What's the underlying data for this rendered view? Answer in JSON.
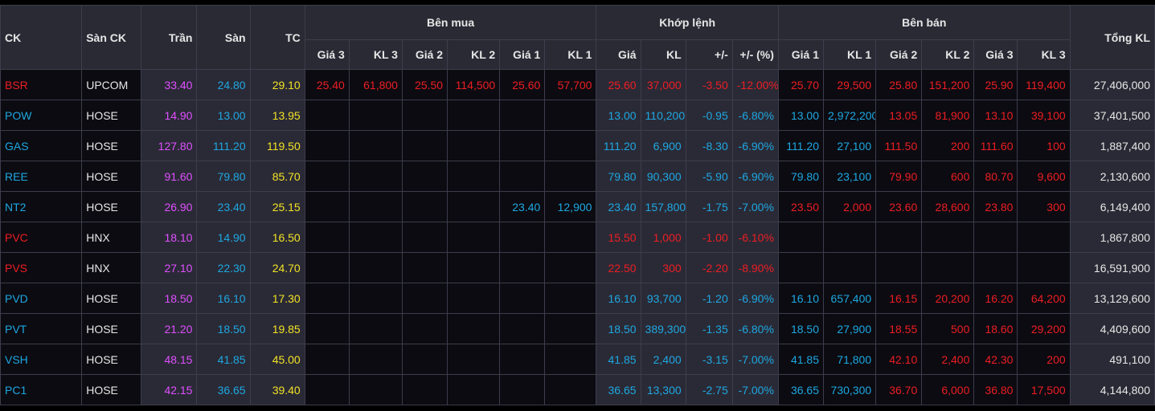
{
  "headers": {
    "ck": "CK",
    "san_ck": "Sàn CK",
    "tran": "Trần",
    "san": "Sàn",
    "tc": "TC",
    "ben_mua": "Bên mua",
    "khop_lenh": "Khớp lệnh",
    "ben_ban": "Bên bán",
    "tong_kl": "Tổng KL",
    "buy_cols": [
      "Giá 3",
      "KL 3",
      "Giá 2",
      "KL 2",
      "Giá 1",
      "KL 1"
    ],
    "match_cols": [
      "Giá",
      "KL",
      "+/-",
      "+/- (%)"
    ],
    "sell_cols": [
      "Giá 1",
      "KL 1",
      "Giá 2",
      "KL 2",
      "Giá 3",
      "KL 3"
    ]
  },
  "colors": {
    "up": "#ee1d23",
    "down": "#1ea7e1",
    "ceiling": "#e04fff",
    "reference": "#f2e224",
    "header_bg": "#2a2a35",
    "border": "#3d3d4c"
  },
  "rows": [
    {
      "ck": "BSR",
      "ck_color": "up",
      "san_ck": "UPCOM",
      "tran": "33.40",
      "san": "24.80",
      "tc": "29.10",
      "buy": [
        [
          "25.40",
          "up"
        ],
        [
          "61,800",
          "up"
        ],
        [
          "25.50",
          "up"
        ],
        [
          "114,500",
          "up"
        ],
        [
          "25.60",
          "up"
        ],
        [
          "57,700",
          "up"
        ]
      ],
      "match": [
        [
          "25.60",
          "up"
        ],
        [
          "37,000",
          "up"
        ],
        [
          "-3.50",
          "up"
        ],
        [
          "-12.00%",
          "up"
        ]
      ],
      "sell": [
        [
          "25.70",
          "up"
        ],
        [
          "29,500",
          "up"
        ],
        [
          "25.80",
          "up"
        ],
        [
          "151,200",
          "up"
        ],
        [
          "25.90",
          "up"
        ],
        [
          "119,400",
          "up"
        ]
      ],
      "tong_kl": "27,406,000"
    },
    {
      "ck": "POW",
      "ck_color": "down",
      "san_ck": "HOSE",
      "tran": "14.90",
      "san": "13.00",
      "tc": "13.95",
      "buy": [
        [
          "",
          ""
        ],
        [
          "",
          ""
        ],
        [
          "",
          ""
        ],
        [
          "",
          ""
        ],
        [
          "",
          ""
        ],
        [
          "",
          ""
        ]
      ],
      "match": [
        [
          "13.00",
          "down"
        ],
        [
          "110,200",
          "down"
        ],
        [
          "-0.95",
          "down"
        ],
        [
          "-6.80%",
          "down"
        ]
      ],
      "sell": [
        [
          "13.00",
          "down"
        ],
        [
          "2,972,200",
          "down"
        ],
        [
          "13.05",
          "up"
        ],
        [
          "81,900",
          "up"
        ],
        [
          "13.10",
          "up"
        ],
        [
          "39,100",
          "up"
        ]
      ],
      "tong_kl": "37,401,500"
    },
    {
      "ck": "GAS",
      "ck_color": "down",
      "san_ck": "HOSE",
      "tran": "127.80",
      "san": "111.20",
      "tc": "119.50",
      "buy": [
        [
          "",
          ""
        ],
        [
          "",
          ""
        ],
        [
          "",
          ""
        ],
        [
          "",
          ""
        ],
        [
          "",
          ""
        ],
        [
          "",
          ""
        ]
      ],
      "match": [
        [
          "111.20",
          "down"
        ],
        [
          "6,900",
          "down"
        ],
        [
          "-8.30",
          "down"
        ],
        [
          "-6.90%",
          "down"
        ]
      ],
      "sell": [
        [
          "111.20",
          "down"
        ],
        [
          "27,100",
          "down"
        ],
        [
          "111.50",
          "up"
        ],
        [
          "200",
          "up"
        ],
        [
          "111.60",
          "up"
        ],
        [
          "100",
          "up"
        ]
      ],
      "tong_kl": "1,887,400"
    },
    {
      "ck": "REE",
      "ck_color": "down",
      "san_ck": "HOSE",
      "tran": "91.60",
      "san": "79.80",
      "tc": "85.70",
      "buy": [
        [
          "",
          ""
        ],
        [
          "",
          ""
        ],
        [
          "",
          ""
        ],
        [
          "",
          ""
        ],
        [
          "",
          ""
        ],
        [
          "",
          ""
        ]
      ],
      "match": [
        [
          "79.80",
          "down"
        ],
        [
          "90,300",
          "down"
        ],
        [
          "-5.90",
          "down"
        ],
        [
          "-6.90%",
          "down"
        ]
      ],
      "sell": [
        [
          "79.80",
          "down"
        ],
        [
          "23,100",
          "down"
        ],
        [
          "79.90",
          "up"
        ],
        [
          "600",
          "up"
        ],
        [
          "80.70",
          "up"
        ],
        [
          "9,600",
          "up"
        ]
      ],
      "tong_kl": "2,130,600"
    },
    {
      "ck": "NT2",
      "ck_color": "down",
      "san_ck": "HOSE",
      "tran": "26.90",
      "san": "23.40",
      "tc": "25.15",
      "buy": [
        [
          "",
          ""
        ],
        [
          "",
          ""
        ],
        [
          "",
          ""
        ],
        [
          "",
          ""
        ],
        [
          "23.40",
          "down"
        ],
        [
          "12,900",
          "down"
        ]
      ],
      "match": [
        [
          "23.40",
          "down"
        ],
        [
          "157,800",
          "down"
        ],
        [
          "-1.75",
          "down"
        ],
        [
          "-7.00%",
          "down"
        ]
      ],
      "sell": [
        [
          "23.50",
          "up"
        ],
        [
          "2,000",
          "up"
        ],
        [
          "23.60",
          "up"
        ],
        [
          "28,600",
          "up"
        ],
        [
          "23.80",
          "up"
        ],
        [
          "300",
          "up"
        ]
      ],
      "tong_kl": "6,149,400"
    },
    {
      "ck": "PVC",
      "ck_color": "up",
      "san_ck": "HNX",
      "tran": "18.10",
      "san": "14.90",
      "tc": "16.50",
      "buy": [
        [
          "",
          ""
        ],
        [
          "",
          ""
        ],
        [
          "",
          ""
        ],
        [
          "",
          ""
        ],
        [
          "",
          ""
        ],
        [
          "",
          ""
        ]
      ],
      "match": [
        [
          "15.50",
          "up"
        ],
        [
          "1,000",
          "up"
        ],
        [
          "-1.00",
          "up"
        ],
        [
          "-6.10%",
          "up"
        ]
      ],
      "sell": [
        [
          "",
          ""
        ],
        [
          "",
          ""
        ],
        [
          "",
          ""
        ],
        [
          "",
          ""
        ],
        [
          "",
          ""
        ],
        [
          "",
          ""
        ]
      ],
      "tong_kl": "1,867,800"
    },
    {
      "ck": "PVS",
      "ck_color": "up",
      "san_ck": "HNX",
      "tran": "27.10",
      "san": "22.30",
      "tc": "24.70",
      "buy": [
        [
          "",
          ""
        ],
        [
          "",
          ""
        ],
        [
          "",
          ""
        ],
        [
          "",
          ""
        ],
        [
          "",
          ""
        ],
        [
          "",
          ""
        ]
      ],
      "match": [
        [
          "22.50",
          "up"
        ],
        [
          "300",
          "up"
        ],
        [
          "-2.20",
          "up"
        ],
        [
          "-8.90%",
          "up"
        ]
      ],
      "sell": [
        [
          "",
          ""
        ],
        [
          "",
          ""
        ],
        [
          "",
          ""
        ],
        [
          "",
          ""
        ],
        [
          "",
          ""
        ],
        [
          "",
          ""
        ]
      ],
      "tong_kl": "16,591,900"
    },
    {
      "ck": "PVD",
      "ck_color": "down",
      "san_ck": "HOSE",
      "tran": "18.50",
      "san": "16.10",
      "tc": "17.30",
      "buy": [
        [
          "",
          ""
        ],
        [
          "",
          ""
        ],
        [
          "",
          ""
        ],
        [
          "",
          ""
        ],
        [
          "",
          ""
        ],
        [
          "",
          ""
        ]
      ],
      "match": [
        [
          "16.10",
          "down"
        ],
        [
          "93,700",
          "down"
        ],
        [
          "-1.20",
          "down"
        ],
        [
          "-6.90%",
          "down"
        ]
      ],
      "sell": [
        [
          "16.10",
          "down"
        ],
        [
          "657,400",
          "down"
        ],
        [
          "16.15",
          "up"
        ],
        [
          "20,200",
          "up"
        ],
        [
          "16.20",
          "up"
        ],
        [
          "64,200",
          "up"
        ]
      ],
      "tong_kl": "13,129,600"
    },
    {
      "ck": "PVT",
      "ck_color": "down",
      "san_ck": "HOSE",
      "tran": "21.20",
      "san": "18.50",
      "tc": "19.85",
      "buy": [
        [
          "",
          ""
        ],
        [
          "",
          ""
        ],
        [
          "",
          ""
        ],
        [
          "",
          ""
        ],
        [
          "",
          ""
        ],
        [
          "",
          ""
        ]
      ],
      "match": [
        [
          "18.50",
          "down"
        ],
        [
          "389,300",
          "down"
        ],
        [
          "-1.35",
          "down"
        ],
        [
          "-6.80%",
          "down"
        ]
      ],
      "sell": [
        [
          "18.50",
          "down"
        ],
        [
          "27,900",
          "down"
        ],
        [
          "18.55",
          "up"
        ],
        [
          "500",
          "up"
        ],
        [
          "18.60",
          "up"
        ],
        [
          "29,200",
          "up"
        ]
      ],
      "tong_kl": "4,409,600"
    },
    {
      "ck": "VSH",
      "ck_color": "down",
      "san_ck": "HOSE",
      "tran": "48.15",
      "san": "41.85",
      "tc": "45.00",
      "buy": [
        [
          "",
          ""
        ],
        [
          "",
          ""
        ],
        [
          "",
          ""
        ],
        [
          "",
          ""
        ],
        [
          "",
          ""
        ],
        [
          "",
          ""
        ]
      ],
      "match": [
        [
          "41.85",
          "down"
        ],
        [
          "2,400",
          "down"
        ],
        [
          "-3.15",
          "down"
        ],
        [
          "-7.00%",
          "down"
        ]
      ],
      "sell": [
        [
          "41.85",
          "down"
        ],
        [
          "71,800",
          "down"
        ],
        [
          "42.10",
          "up"
        ],
        [
          "2,400",
          "up"
        ],
        [
          "42.30",
          "up"
        ],
        [
          "200",
          "up"
        ]
      ],
      "tong_kl": "491,100"
    },
    {
      "ck": "PC1",
      "ck_color": "down",
      "san_ck": "HOSE",
      "tran": "42.15",
      "san": "36.65",
      "tc": "39.40",
      "buy": [
        [
          "",
          ""
        ],
        [
          "",
          ""
        ],
        [
          "",
          ""
        ],
        [
          "",
          ""
        ],
        [
          "",
          ""
        ],
        [
          "",
          ""
        ]
      ],
      "match": [
        [
          "36.65",
          "down"
        ],
        [
          "13,300",
          "down"
        ],
        [
          "-2.75",
          "down"
        ],
        [
          "-7.00%",
          "down"
        ]
      ],
      "sell": [
        [
          "36.65",
          "down"
        ],
        [
          "730,300",
          "down"
        ],
        [
          "36.70",
          "up"
        ],
        [
          "6,000",
          "up"
        ],
        [
          "36.80",
          "up"
        ],
        [
          "17,500",
          "up"
        ]
      ],
      "tong_kl": "4,144,800"
    }
  ]
}
